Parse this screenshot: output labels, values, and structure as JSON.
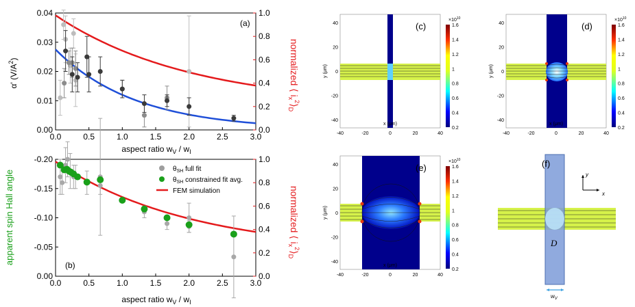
{
  "chart_data": [
    {
      "type": "scatter",
      "panel_label": "(a)",
      "xlabel": "aspect ratio w_V / w_I",
      "xlabel_text": "aspect ratio w",
      "xlabel_sub1": "V",
      "xlabel_mid": " / w",
      "xlabel_sub2": "I",
      "ylabel": "α' (V/A²)",
      "ylabel_text": "α' (V/A",
      "ylabel_sup": "2",
      "ylabel_end": ")",
      "y2label": "normalized ⟨i_x²⟩_D",
      "y2label_text": "normalized ⟨ i",
      "y2label_sub": "x",
      "y2label_sup": "2",
      "y2label_end": "⟩",
      "y2label_sub2": "D",
      "xlim": [
        0,
        3.0
      ],
      "ylim": [
        0,
        0.04
      ],
      "y2lim": [
        0,
        1.0
      ],
      "xticks": [
        "0.0",
        "0.5",
        "1.0",
        "1.5",
        "2.0",
        "2.5",
        "3.0"
      ],
      "yticks": [
        "0.00",
        "0.01",
        "0.02",
        "0.03",
        "0.04"
      ],
      "y2ticks": [
        "0.0",
        "0.2",
        "0.4",
        "0.6",
        "0.8",
        "1.0"
      ],
      "series": [
        {
          "name": "light data",
          "color": "#bdbdbd",
          "x": [
            0.07,
            0.12,
            0.15,
            0.22,
            0.27,
            0.3,
            2.0
          ],
          "y": [
            0.011,
            0.036,
            0.031,
            0.022,
            0.033,
            0.017,
            0.02
          ],
          "err": [
            0.006,
            0.005,
            0.008,
            0.006,
            0.005,
            0.009,
            0.019
          ]
        },
        {
          "name": "mid data",
          "color": "#8c8c8c",
          "x": [
            0.13,
            0.2,
            0.25,
            0.3,
            1.0,
            1.33,
            1.67
          ],
          "y": [
            0.016,
            0.023,
            0.023,
            0.021,
            0.014,
            0.005,
            0.011
          ],
          "err": [
            0.005,
            0.004,
            0.005,
            0.006,
            0.003,
            0.004,
            0.004
          ]
        },
        {
          "name": "dark data",
          "color": "#3a3a3a",
          "x": [
            0.15,
            0.25,
            0.33,
            0.47,
            0.5,
            0.67,
            1.0,
            1.33,
            1.67,
            2.0,
            2.67
          ],
          "y": [
            0.027,
            0.019,
            0.018,
            0.025,
            0.019,
            0.02,
            0.014,
            0.009,
            0.01,
            0.008,
            0.004
          ],
          "err": [
            0.007,
            0.006,
            0.005,
            0.007,
            0.006,
            0.005,
            0.003,
            0.003,
            0.002,
            0.003,
            0.001
          ]
        }
      ],
      "curves": [
        {
          "name": "blue fit",
          "color": "#1f4fd8",
          "axis": "left",
          "amplitude": 0.0275,
          "decay": 0.83
        },
        {
          "name": "red normalized",
          "color": "#e41a1c",
          "axis": "right",
          "amplitude": 0.98,
          "decay": 0.49,
          "offset": 0.2
        }
      ]
    },
    {
      "type": "scatter",
      "panel_label": "(b)",
      "xlabel": "aspect ratio w_V / w_I",
      "xlabel_text": "aspect ratio w",
      "xlabel_sub1": "V",
      "xlabel_mid": " / w",
      "xlabel_sub2": "I",
      "ylabel": "apparent spin Hall angle",
      "y2label": "normalized ⟨i_x²⟩_D",
      "y2label_text": "normalized ⟨ i",
      "y2label_sub": "x",
      "y2label_sup": "2",
      "y2label_end": "⟩",
      "y2label_sub2": "D",
      "xlim": [
        0,
        3.0
      ],
      "ylim": [
        0,
        -0.2
      ],
      "y2lim": [
        0,
        1.0
      ],
      "xticks": [
        "0.0",
        "0.5",
        "1.0",
        "1.5",
        "2.0",
        "2.5",
        "3.0"
      ],
      "yticks": [
        "0.00",
        "-0.05",
        "-0.10",
        "-0.15",
        "-0.20"
      ],
      "y2ticks": [
        "0.0",
        "0.2",
        "0.4",
        "0.6",
        "0.8",
        "1.0"
      ],
      "legend": [
        {
          "label_main": "θ",
          "label_sub": "SH",
          "label_rest": " full fit",
          "color": "#9e9e9e",
          "kind": "point"
        },
        {
          "label_main": "θ",
          "label_sub": "SH",
          "label_rest": " constrained fit avg.",
          "color": "#1aa01a",
          "kind": "point"
        },
        {
          "label_main": "FEM simulation",
          "label_sub": "",
          "label_rest": "",
          "color": "#e41a1c",
          "kind": "line"
        }
      ],
      "series": [
        {
          "name": "θSH full fit",
          "color": "#a8a8a8",
          "x": [
            0.07,
            0.1,
            0.15,
            0.18,
            0.22,
            0.27,
            0.3,
            0.47,
            0.67,
            0.67,
            1.33,
            1.67,
            2.0,
            2.0,
            2.67
          ],
          "y": [
            -0.17,
            -0.16,
            -0.19,
            -0.2,
            -0.18,
            -0.17,
            -0.17,
            -0.16,
            -0.17,
            -0.155,
            -0.11,
            -0.09,
            -0.1,
            -0.085,
            -0.033
          ],
          "err": [
            0.03,
            0.02,
            0.03,
            0.03,
            0.03,
            0.02,
            0.02,
            0.02,
            0.1,
            0.015,
            0.01,
            0.01,
            0.025,
            0.01,
            0.07
          ]
        },
        {
          "name": "θSH constrained fit avg.",
          "color": "#1aa01a",
          "x": [
            0.07,
            0.13,
            0.17,
            0.2,
            0.23,
            0.27,
            0.33,
            0.47,
            0.67,
            1.0,
            1.33,
            1.67,
            2.0,
            2.67
          ],
          "y": [
            -0.19,
            -0.182,
            -0.183,
            -0.18,
            -0.178,
            -0.175,
            -0.17,
            -0.161,
            -0.165,
            -0.13,
            -0.115,
            -0.1,
            -0.088,
            -0.072
          ],
          "err": [
            0,
            0,
            0,
            0,
            0,
            0,
            0,
            0,
            0,
            0,
            0,
            0,
            0,
            0
          ]
        }
      ],
      "curves": [
        {
          "name": "FEM simulation",
          "color": "#e41a1c",
          "axis": "right",
          "amplitude": 0.98,
          "decay": 0.49,
          "offset": 0.2
        }
      ]
    }
  ],
  "maps": [
    {
      "label": "(c)",
      "xticks": [
        "-40",
        "-20",
        "0",
        "20",
        "40"
      ],
      "yticks": [
        "40",
        "20",
        "0",
        "-20",
        "-40"
      ],
      "xlabel": "x (μm)",
      "ylabel": "y (μm)",
      "cb_ticks": [
        "1.6",
        "1.4",
        "1.2",
        "1",
        "0.8",
        "0.6",
        "0.4",
        "0.2"
      ],
      "cb_exp": "×10",
      "cb_exp_sup": "10"
    },
    {
      "label": "(d)",
      "xticks": [
        "-40",
        "-20",
        "0",
        "20",
        "40"
      ],
      "yticks": [
        "40",
        "20",
        "0",
        "-20",
        "-40"
      ],
      "xlabel": "x (μm)",
      "ylabel": "y (μm)",
      "cb_ticks": [
        "1.6",
        "1.4",
        "1.2",
        "1",
        "0.8",
        "0.6",
        "0.4",
        "0.2"
      ],
      "cb_exp": "×10",
      "cb_exp_sup": "10"
    },
    {
      "label": "(e)",
      "xticks": [
        "-40",
        "-20",
        "0",
        "20",
        "40"
      ],
      "yticks": [
        "40",
        "20",
        "0",
        "-20",
        "-40"
      ],
      "xlabel": "x (μm)",
      "ylabel": "y (μm)",
      "cb_ticks": [
        "1.6",
        "1.4",
        "1.2",
        "1",
        "0.8",
        "0.6",
        "0.4",
        "0.2"
      ],
      "cb_exp": "×10",
      "cb_exp_sup": "10"
    },
    {
      "label": "(f)",
      "region_label": "D",
      "width_label": "w",
      "width_sub": "V",
      "axis_x": "x",
      "axis_y": "y"
    }
  ]
}
